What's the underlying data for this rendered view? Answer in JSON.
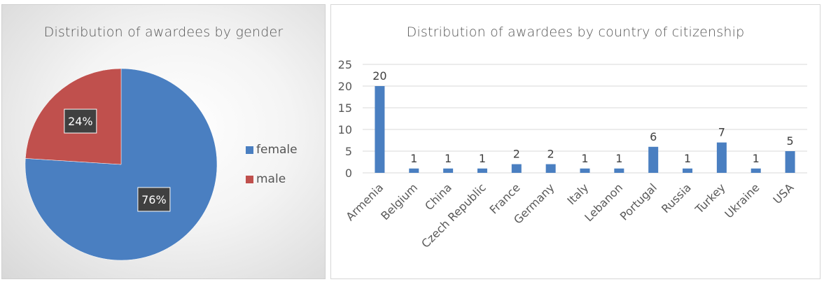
{
  "chart_data": [
    {
      "type": "pie",
      "title": "Distribution of awardees by gender",
      "slices": [
        {
          "label": "female",
          "value": 76,
          "display": "76%",
          "color": "#4a7fc1"
        },
        {
          "label": "male",
          "value": 24,
          "display": "24%",
          "color": "#c0504d"
        }
      ],
      "legend_position": "right"
    },
    {
      "type": "bar",
      "title": "Distribution of awardees by country of citizenship",
      "categories": [
        "Armenia",
        "Belgium",
        "China",
        "Czech Republic",
        "France",
        "Germany",
        "Italy",
        "Lebanon",
        "Portugal",
        "Russia",
        "Turkey",
        "Ukraine",
        "USA"
      ],
      "values": [
        20,
        1,
        1,
        1,
        2,
        2,
        1,
        1,
        6,
        1,
        7,
        1,
        5
      ],
      "ylim": [
        0,
        25
      ],
      "yticks": [
        0,
        5,
        10,
        15,
        20,
        25
      ],
      "grid": true,
      "bar_color": "#4a7fc1"
    }
  ]
}
